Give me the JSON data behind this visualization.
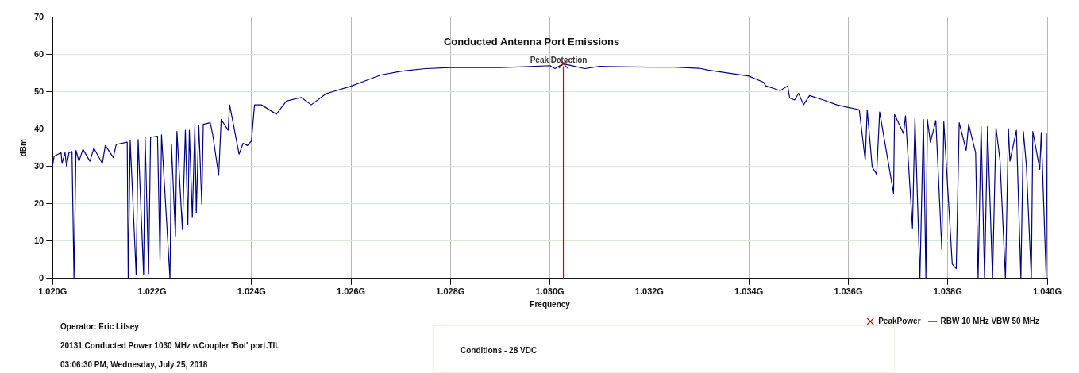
{
  "chart_data": {
    "type": "line",
    "title": "Conducted Antenna Port Emissions",
    "xlabel": "Frequency",
    "ylabel": "dBm",
    "xlim": [
      1.02,
      1.04
    ],
    "xticks": [
      {
        "value": 1.02,
        "label": "1.020G"
      },
      {
        "value": 1.022,
        "label": "1.022G"
      },
      {
        "value": 1.024,
        "label": "1.024G"
      },
      {
        "value": 1.026,
        "label": "1.026G"
      },
      {
        "value": 1.028,
        "label": "1.028G"
      },
      {
        "value": 1.03,
        "label": "1.030G"
      },
      {
        "value": 1.032,
        "label": "1.032G"
      },
      {
        "value": 1.034,
        "label": "1.034G"
      },
      {
        "value": 1.036,
        "label": "1.036G"
      },
      {
        "value": 1.038,
        "label": "1.038G"
      },
      {
        "value": 1.04,
        "label": "1.040G"
      }
    ],
    "ylim": [
      0,
      70
    ],
    "yticks": [
      0,
      10,
      20,
      30,
      40,
      50,
      60,
      70
    ],
    "grid": true,
    "legend": "bottom right",
    "marker": "none",
    "line_style": "solid",
    "series": [
      {
        "name": "RBW 10 MHz VBW 50 MHz",
        "color": "#000080",
        "x": [
          1.02,
          1.02003,
          1.02017,
          1.02019,
          1.02025,
          1.02028,
          1.02033,
          1.02039,
          1.02043,
          1.02047,
          1.02053,
          1.02061,
          1.02075,
          1.02083,
          1.021,
          1.02106,
          1.02122,
          1.02128,
          1.0215,
          1.02152,
          1.02156,
          1.02168,
          1.02172,
          1.02183,
          1.02186,
          1.02193,
          1.02197,
          1.02211,
          1.02216,
          1.02219,
          1.02236,
          1.02239,
          1.02247,
          1.0225,
          1.02261,
          1.02267,
          1.02272,
          1.02275,
          1.02281,
          1.02286,
          1.02289,
          1.02294,
          1.023,
          1.02303,
          1.02317,
          1.02322,
          1.02334,
          1.02339,
          1.02353,
          1.02356,
          1.02375,
          1.02383,
          1.02392,
          1.024,
          1.02406,
          1.0242,
          1.0245,
          1.0247,
          1.025,
          1.0252,
          1.0255,
          1.026,
          1.0263,
          1.0266,
          1.027,
          1.0275,
          1.028,
          1.029,
          1.0295,
          1.03,
          1.0301,
          1.03027,
          1.0305,
          1.0307,
          1.031,
          1.032,
          1.0325,
          1.033,
          1.03318,
          1.034,
          1.03429,
          1.03434,
          1.03448,
          1.03463,
          1.03478,
          1.03482,
          1.03492,
          1.035,
          1.0351,
          1.03522,
          1.0355,
          1.03577,
          1.036,
          1.03622,
          1.03634,
          1.03638,
          1.03648,
          1.03657,
          1.03663,
          1.03691,
          1.03693,
          1.03711,
          1.03715,
          1.03729,
          1.03734,
          1.03744,
          1.03751,
          1.03756,
          1.03759,
          1.03765,
          1.03776,
          1.03788,
          1.03792,
          1.03809,
          1.03817,
          1.03823,
          1.03837,
          1.03842,
          1.03856,
          1.03861,
          1.03867,
          1.03874,
          1.0388,
          1.0389,
          1.03897,
          1.03905,
          1.03916,
          1.03922,
          1.03925,
          1.03938,
          1.03947,
          1.03952,
          1.03958,
          1.03968,
          1.03971,
          1.03985,
          1.03988,
          1.03998,
          1.04
        ],
        "values": [
          30.1,
          32.7,
          33.7,
          30.8,
          33.7,
          30.1,
          33.7,
          34,
          0,
          34.3,
          31.4,
          34.6,
          31.4,
          34.9,
          30.8,
          35.6,
          32.4,
          35.9,
          36.5,
          0,
          36.9,
          1,
          37.2,
          1,
          37.8,
          1.3,
          37.8,
          38.1,
          4.8,
          38.5,
          0,
          35.9,
          11.2,
          39.4,
          13.1,
          39.7,
          14.4,
          39.7,
          16.3,
          40.7,
          17.6,
          41,
          19.9,
          41.3,
          41.7,
          38.5,
          27.6,
          42.6,
          39.7,
          46.5,
          33.3,
          36.2,
          35.6,
          36.9,
          46.5,
          46.5,
          44,
          47.5,
          48.5,
          46.5,
          49.5,
          51.5,
          53,
          54.5,
          55.5,
          56.2,
          56.5,
          56.5,
          56.7,
          57,
          56.2,
          57.5,
          56.8,
          56.2,
          56.8,
          56.6,
          56.6,
          56.3,
          55.8,
          54.2,
          52.6,
          51.6,
          51,
          50.3,
          51.6,
          48.4,
          47.8,
          49.6,
          46.5,
          49,
          47.8,
          46.5,
          45.8,
          45.2,
          31.7,
          45.2,
          29.8,
          27.9,
          44.6,
          22.8,
          43.9,
          38.8,
          43.6,
          13.5,
          42.9,
          0,
          42.6,
          0,
          42.6,
          36.5,
          42.3,
          7.7,
          42,
          3.8,
          2.6,
          41.7,
          34.3,
          41.3,
          33.7,
          0,
          40.7,
          0,
          40.7,
          0,
          40.4,
          31.7,
          0,
          40.1,
          31.4,
          39.7,
          0,
          39.4,
          30.4,
          0,
          39.4,
          29.2,
          39.1,
          0,
          38.8
        ]
      },
      {
        "name": "PeakPower",
        "color": "#a01818",
        "type": "scatter",
        "marker": "cross",
        "x": [
          1.03027
        ],
        "values": [
          57.5
        ]
      }
    ],
    "ref_lines": [
      {
        "axis": "x",
        "value": 1.03027,
        "label": "Peak Detection",
        "color": "#a01818"
      }
    ],
    "annotations": [
      "Operator: Eric Lifsey",
      "20131 Conducted Power 1030 MHz wCoupler 'Bot' port.TIL",
      "03:06:30 PM, Wednesday, July 25, 2018",
      "Conditions - 28 VDC"
    ]
  }
}
